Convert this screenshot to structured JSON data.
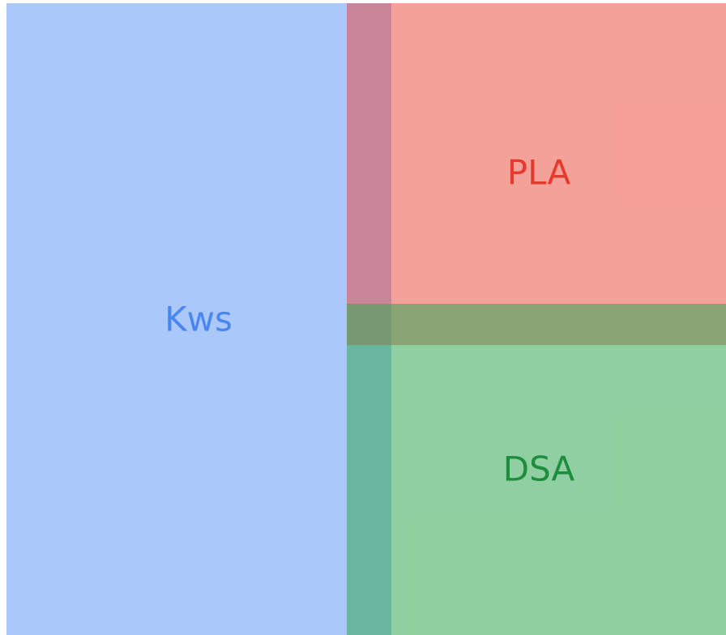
{
  "nodes": [
    {
      "label": "Kws"
    },
    {
      "label": "PLA"
    },
    {
      "label": "DSA"
    }
  ]
}
